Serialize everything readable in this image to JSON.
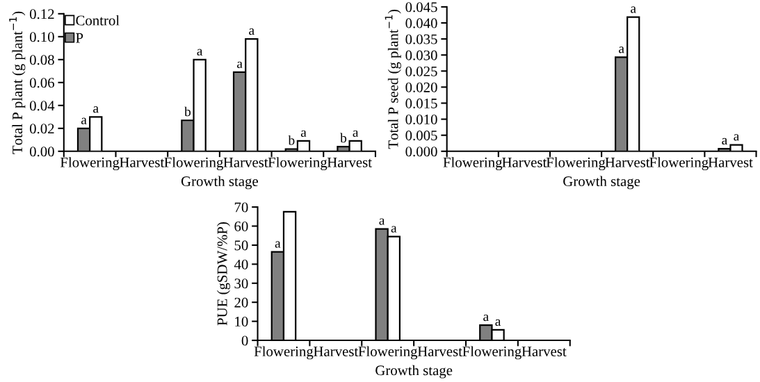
{
  "chart_data": [
    {
      "type": "bar",
      "ylabel": "Total P plant (g plant$^{−1}$)",
      "xlabel": "Growth stage",
      "categories": [
        "Flowering",
        "Harvest",
        "Flowering",
        "Harvest",
        "Flowering",
        "Harvest"
      ],
      "series": [
        {
          "name": "P",
          "color": "#808080",
          "values": [
            0.02,
            null,
            0.027,
            0.069,
            0.002,
            0.004
          ],
          "value_labels": [
            "a",
            null,
            "b",
            "a",
            "b",
            "b"
          ]
        },
        {
          "name": "Control",
          "color": "#ffffff",
          "values": [
            0.03,
            null,
            0.08,
            0.098,
            0.009,
            0.009
          ],
          "value_labels": [
            "a",
            null,
            "a",
            "a",
            "a",
            "a"
          ]
        }
      ],
      "ylim": [
        0,
        0.12
      ],
      "yticks": [
        {
          "value": 0,
          "label": "0.00"
        },
        {
          "value": 0.02,
          "label": "0.02"
        },
        {
          "value": 0.04,
          "label": "0.04"
        },
        {
          "value": 0.06,
          "label": "0.06"
        },
        {
          "value": 0.08,
          "label": "0.08"
        },
        {
          "value": 0.1,
          "label": "0.10"
        },
        {
          "value": 0.12,
          "label": "0.12"
        }
      ],
      "legend": "top left",
      "grid": false
    },
    {
      "type": "bar",
      "ylabel": "Total P seed (g plant$^{−1}$)",
      "xlabel": "Growth stage",
      "categories": [
        "Flowering",
        "Harvest",
        "Flowering",
        "Harvest",
        "Flowering",
        "Harvest"
      ],
      "series": [
        {
          "color": "#808080",
          "values": [
            null,
            null,
            null,
            0.0293,
            null,
            0.0008
          ],
          "value_labels": [
            null,
            null,
            null,
            "a",
            null,
            "a"
          ]
        },
        {
          "color": "#ffffff",
          "values": [
            null,
            null,
            null,
            0.0418,
            null,
            0.002
          ],
          "value_labels": [
            null,
            null,
            null,
            "a",
            null,
            "a"
          ]
        }
      ],
      "ylim": [
        0,
        0.045
      ],
      "yticks": [
        {
          "value": 0,
          "label": "0.000"
        },
        {
          "value": 0.005,
          "label": "0.005"
        },
        {
          "value": 0.01,
          "label": "0.010"
        },
        {
          "value": 0.015,
          "label": "0.015"
        },
        {
          "value": 0.02,
          "label": "0.020"
        },
        {
          "value": 0.025,
          "label": "0.025"
        },
        {
          "value": 0.03,
          "label": "0.030"
        },
        {
          "value": 0.035,
          "label": "0.035"
        },
        {
          "value": 0.04,
          "label": "0.040"
        },
        {
          "value": 0.045,
          "label": "0.045"
        }
      ],
      "grid": false
    },
    {
      "type": "bar",
      "ylabel": "PUE (gSDW/%P)",
      "xlabel": "Growth stage",
      "categories": [
        "Flowering",
        "Harvest",
        "Flowering",
        "Harvest",
        "Flowering",
        "Harvest"
      ],
      "series": [
        {
          "color": "#808080",
          "values": [
            46.5,
            null,
            58.5,
            null,
            8,
            null
          ],
          "value_labels": [
            "a",
            null,
            "a",
            null,
            "a",
            null
          ]
        },
        {
          "color": "#ffffff",
          "values": [
            67.5,
            null,
            54.5,
            null,
            5.5,
            null
          ],
          "value_labels": [
            null,
            null,
            "a",
            null,
            "a",
            null
          ]
        }
      ],
      "ylim": [
        0,
        70
      ],
      "yticks": [
        0,
        10,
        20,
        30,
        40,
        50,
        60,
        70
      ],
      "grid": false
    }
  ]
}
